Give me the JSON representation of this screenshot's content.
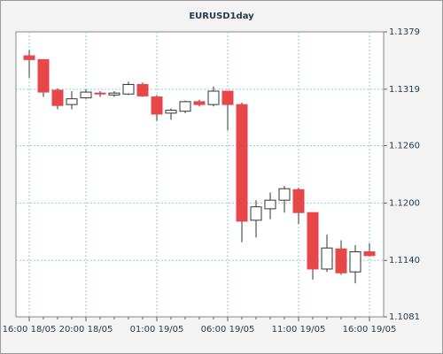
{
  "chart_data": {
    "type": "candlestick",
    "title": "EURUSD1day",
    "categories": [
      "16:00 18/05",
      null,
      null,
      null,
      "20:00 18/05",
      null,
      null,
      null,
      null,
      "01:00 19/05",
      null,
      null,
      null,
      null,
      "06:00 19/05",
      null,
      null,
      null,
      null,
      "11:00 19/05",
      null,
      null,
      null,
      null,
      "16:00 19/05"
    ],
    "open": [
      1.1354,
      1.135,
      1.1318,
      1.1303,
      1.131,
      1.1315,
      1.1313,
      1.1314,
      1.1324,
      1.1311,
      1.1294,
      1.1296,
      1.1306,
      1.1303,
      1.1317,
      1.1303,
      1.1182,
      1.1194,
      1.1203,
      1.1214,
      1.119,
      1.1131,
      1.1152,
      1.1128,
      1.1149
    ],
    "high": [
      1.136,
      1.135,
      1.132,
      1.1317,
      1.1319,
      1.1317,
      1.1317,
      1.1327,
      1.1326,
      1.1313,
      1.1299,
      1.1307,
      1.1308,
      1.1322,
      1.1317,
      1.1305,
      1.1203,
      1.1211,
      1.1218,
      1.1216,
      1.119,
      1.1167,
      1.1161,
      1.1156,
      1.1158
    ],
    "low": [
      1.1331,
      1.1311,
      1.1298,
      1.1298,
      1.1309,
      1.1311,
      1.1311,
      1.1313,
      1.1311,
      1.1286,
      1.1287,
      1.1294,
      1.1301,
      1.1301,
      1.1276,
      1.1159,
      1.1164,
      1.1183,
      1.119,
      1.1178,
      1.112,
      1.1128,
      1.1125,
      1.1116,
      1.1144
    ],
    "close": [
      1.135,
      1.1316,
      1.1302,
      1.1309,
      1.1316,
      1.1314,
      1.1315,
      1.1324,
      1.1312,
      1.1293,
      1.1297,
      1.1306,
      1.1303,
      1.1317,
      1.1303,
      1.1181,
      1.1196,
      1.1203,
      1.1215,
      1.119,
      1.1131,
      1.1153,
      1.1127,
      1.1149,
      1.1145
    ],
    "up_color": "#ffffff",
    "down_color": "#e8474a",
    "ylim": [
      1.1081,
      1.1379
    ],
    "yticks": [
      1.1081,
      {
        "value": 1.114,
        "label": "1.1140"
      },
      {
        "value": 1.12,
        "label": "1.1200"
      },
      {
        "value": 1.126,
        "label": "1.1260"
      },
      1.1319,
      1.1379
    ],
    "grid": true
  }
}
